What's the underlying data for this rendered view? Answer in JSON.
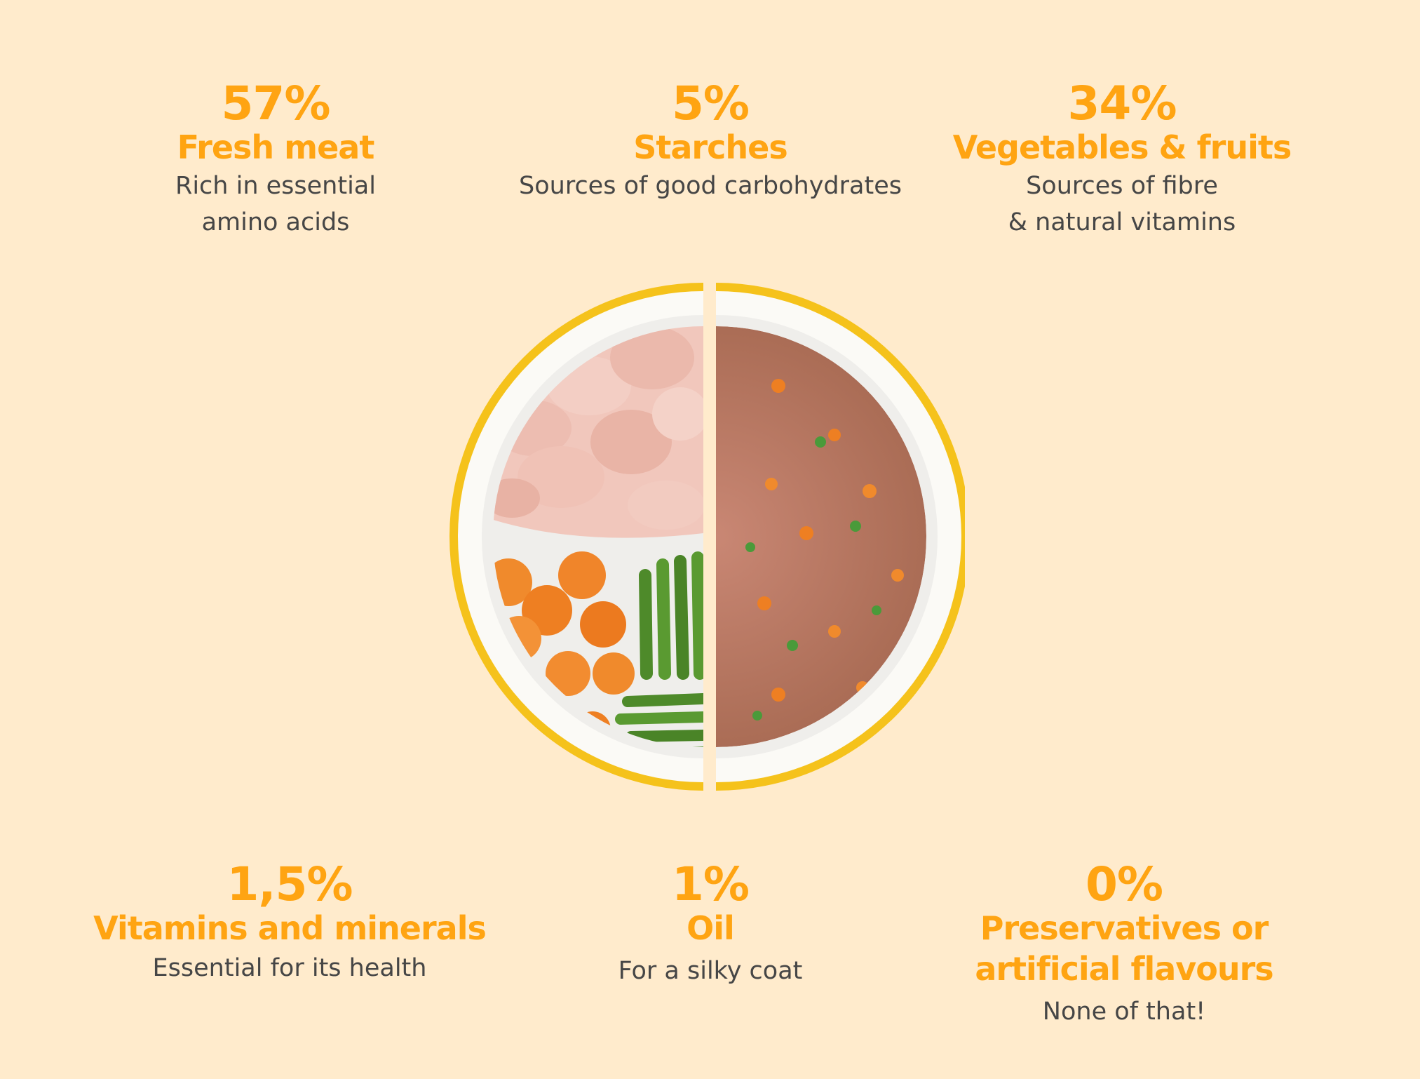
{
  "colors": {
    "background": "#FFEBCC",
    "accent": "#FFA412",
    "text": "#464646",
    "bowl_rim": "#F5C21B"
  },
  "ingredients": [
    {
      "percent": "57%",
      "title": "Fresh meat",
      "desc_lines": [
        "Rich in essential",
        "amino acids"
      ]
    },
    {
      "percent": "5%",
      "title": "Starches",
      "desc_lines": [
        "Sources of good carbohydrates"
      ]
    },
    {
      "percent": "34%",
      "title": "Vegetables & fruits",
      "desc_lines": [
        "Sources of fibre",
        "& natural vitamins"
      ]
    },
    {
      "percent": "1,5%",
      "title": "Vitamins and minerals",
      "desc_lines": [
        "Essential for its health"
      ]
    },
    {
      "percent": "1%",
      "title": "Oil",
      "desc_lines": [
        "For a silky coat"
      ]
    },
    {
      "percent": "0%",
      "title_lines": [
        "Preservatives or",
        "artificial flavours"
      ],
      "desc_lines": [
        "None of that!"
      ]
    }
  ],
  "image": {
    "icon": "food-bowl-image"
  }
}
